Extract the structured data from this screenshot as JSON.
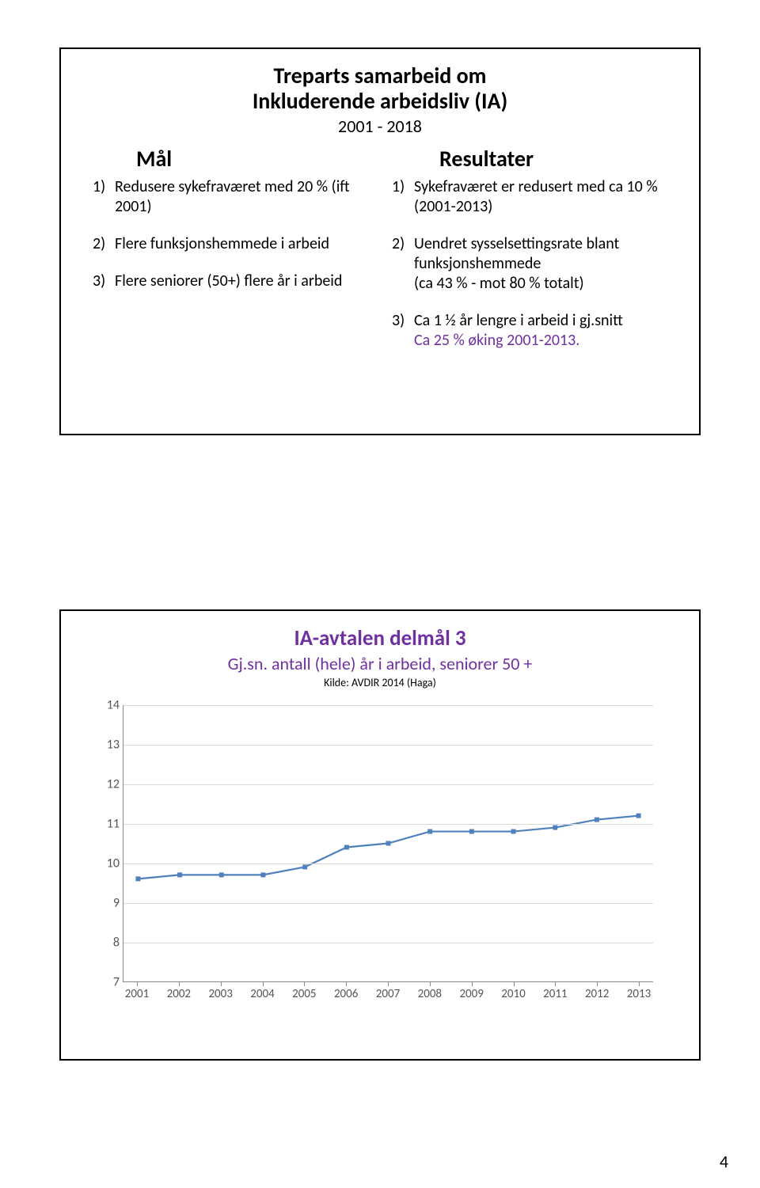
{
  "page_number": "4",
  "slide1": {
    "title_l1": "Treparts samarbeid om",
    "title_l2": "Inkluderende arbeidsliv (IA)",
    "title_year": "2001 - 2018",
    "left_head": "Mål",
    "right_head": "Resultater",
    "left_items": [
      {
        "n": "1)",
        "t": "Redusere sykefraværet med 20 % (ift 2001)"
      },
      {
        "n": "2)",
        "t": "Flere funksjonshemmede  i arbeid"
      },
      {
        "n": "3)",
        "t": "Flere seniorer (50+) flere år i arbeid"
      }
    ],
    "right_items": [
      {
        "n": "1)",
        "t": "Sykefraværet er redusert med ca 10 % (2001-2013)"
      },
      {
        "n": "2)",
        "t": "Uendret sysselsettingsrate blant funksjonshemmede\n(ca 43 % - mot 80 % totalt)"
      },
      {
        "n": "3)",
        "t": "Ca 1 ½ år lengre i arbeid i gj.snitt",
        "extra": "Ca 25 % øking 2001-2013."
      }
    ]
  },
  "slide2": {
    "title": "IA-avtalen delmål 3",
    "subtitle": "Gj.sn. antall  (hele) år i arbeid, seniorer 50 +",
    "kilde": "Kilde: AVDIR 2014 (Haga)",
    "chart": {
      "type": "line",
      "ylim": [
        7,
        14
      ],
      "yticks": [
        7,
        8,
        9,
        10,
        11,
        12,
        13,
        14
      ],
      "x_labels": [
        "2001",
        "2002",
        "2003",
        "2004",
        "2005",
        "2006",
        "2007",
        "2008",
        "2009",
        "2010",
        "2011",
        "2012",
        "2013"
      ],
      "values": [
        9.6,
        9.7,
        9.7,
        9.7,
        9.9,
        10.4,
        10.5,
        10.8,
        10.8,
        10.8,
        10.9,
        11.1,
        11.2
      ],
      "line_color": "#4f81bd",
      "marker_color": "#4f81bd",
      "marker_size": 6,
      "line_width": 2.2,
      "grid_color": "#d9d9d9",
      "axis_color": "#888888",
      "background_color": "#ffffff",
      "label_fontsize": 16
    }
  },
  "colors": {
    "accent_purple": "#7030a0",
    "series_blue": "#4f81bd"
  }
}
